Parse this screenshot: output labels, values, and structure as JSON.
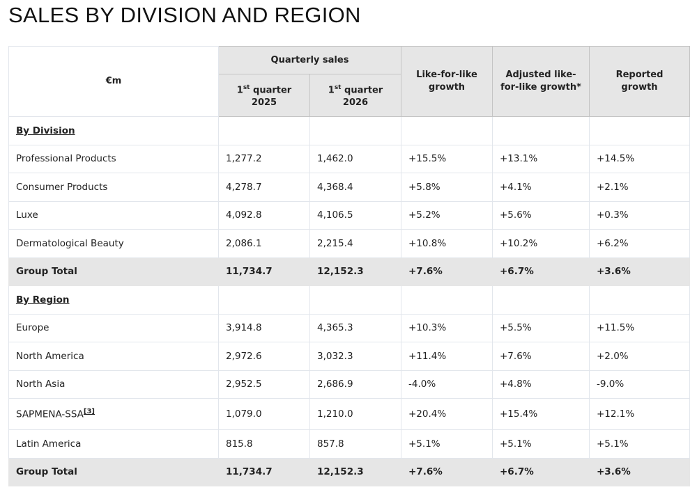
{
  "title": "SALES BY DIVISION AND REGION",
  "header": {
    "unit": "€m",
    "quarterly_sales": "Quarterly sales",
    "q1_2025": {
      "num": "1",
      "sup": "st",
      "label": " quarter",
      "year": "2025"
    },
    "q1_2026": {
      "num": "1",
      "sup": "st",
      "label": " quarter",
      "year": "2026"
    },
    "lfl": "Like-for-like growth",
    "adj_lfl": "Adjusted like-for-like growth*",
    "reported": "Reported growth"
  },
  "sections": [
    {
      "title": "By Division",
      "rows": [
        [
          "Professional Products",
          "1,277.2",
          "1,462.0",
          "+15.5%",
          "+13.1%",
          "+14.5%"
        ],
        [
          "Consumer Products",
          "4,278.7",
          "4,368.4",
          "+5.8%",
          "+4.1%",
          "+2.1%"
        ],
        [
          "Luxe",
          "4,092.8",
          "4,106.5",
          "+5.2%",
          "+5.6%",
          "+0.3%"
        ],
        [
          "Dermatological Beauty",
          "2,086.1",
          "2,215.4",
          "+10.8%",
          "+10.2%",
          "+6.2%"
        ]
      ],
      "total": [
        "Group Total",
        "11,734.7",
        "12,152.3",
        "+7.6%",
        "+6.7%",
        "+3.6%"
      ]
    },
    {
      "title": "By Region",
      "rows": [
        [
          "Europe",
          "3,914.8",
          "4,365.3",
          "+10.3%",
          "+5.5%",
          "+11.5%"
        ],
        [
          "North America",
          "2,972.6",
          "3,032.3",
          "+11.4%",
          "+7.6%",
          "+2.0%"
        ],
        [
          "North Asia",
          "2,952.5",
          "2,686.9",
          "-4.0%",
          "+4.8%",
          "-9.0%"
        ],
        [
          "SAPMENA-SSA",
          "1,079.0",
          "1,210.0",
          "+20.4%",
          "+15.4%",
          "+12.1%"
        ],
        [
          "Latin America",
          "815.8",
          "857.8",
          "+5.1%",
          "+5.1%",
          "+5.1%"
        ]
      ],
      "total": [
        "Group Total",
        "11,734.7",
        "12,152.3",
        "+7.6%",
        "+6.7%",
        "+3.6%"
      ]
    }
  ],
  "footnote_ref": "[3]"
}
